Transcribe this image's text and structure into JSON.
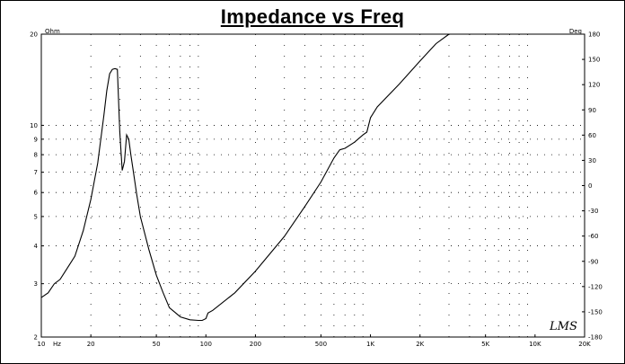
{
  "chart_data": {
    "type": "line",
    "title": "Impedance vs Freq",
    "x_scale": "log",
    "y_scale": "log",
    "xlim": [
      10,
      20000
    ],
    "ylim": [
      2,
      20
    ],
    "y2lim": [
      -180,
      180
    ],
    "y_unit": "Ohm",
    "y2_unit": "Deg",
    "x_ticks": [
      {
        "v": 10,
        "label": "10"
      },
      {
        "v": 20,
        "label": "20"
      },
      {
        "v": 50,
        "label": "50"
      },
      {
        "v": 100,
        "label": "100"
      },
      {
        "v": 200,
        "label": "200"
      },
      {
        "v": 500,
        "label": "500"
      },
      {
        "v": 1000,
        "label": "1K"
      },
      {
        "v": 2000,
        "label": "2K"
      },
      {
        "v": 5000,
        "label": "5K"
      },
      {
        "v": 10000,
        "label": "10K"
      },
      {
        "v": 20000,
        "label": "20K"
      }
    ],
    "x_unit_label": "Hz",
    "y_ticks": [
      {
        "v": 2,
        "label": "2"
      },
      {
        "v": 3,
        "label": "3"
      },
      {
        "v": 4,
        "label": "4"
      },
      {
        "v": 5,
        "label": "5"
      },
      {
        "v": 6,
        "label": "6"
      },
      {
        "v": 7,
        "label": "7"
      },
      {
        "v": 8,
        "label": "8"
      },
      {
        "v": 9,
        "label": "9"
      },
      {
        "v": 10,
        "label": "10"
      },
      {
        "v": 20,
        "label": "20"
      }
    ],
    "y2_ticks": [
      "180",
      "150",
      "120",
      "90",
      "60",
      "30",
      "0",
      "-30",
      "-60",
      "-90",
      "-120",
      "-150",
      "-180"
    ],
    "grid": "dotted",
    "series": [
      {
        "x": [
          10,
          11,
          12,
          13,
          14,
          15,
          16,
          18,
          20,
          22,
          24,
          25,
          26,
          27,
          28,
          29,
          30,
          31,
          32,
          33,
          34,
          35,
          36,
          38,
          40,
          45,
          50,
          55,
          60,
          70,
          80,
          90,
          95,
          100,
          103,
          110,
          150,
          200,
          300,
          400,
          500,
          600,
          650,
          700,
          800,
          900,
          950,
          1000,
          1100,
          1500,
          2000,
          2500,
          3000
        ],
        "y": [
          2.7,
          2.8,
          3.0,
          3.1,
          3.3,
          3.5,
          3.7,
          4.5,
          5.7,
          7.5,
          10.8,
          13.0,
          14.8,
          15.3,
          15.4,
          15.3,
          9.5,
          7.1,
          7.6,
          9.3,
          9.0,
          8.0,
          7.2,
          5.9,
          5.0,
          3.9,
          3.2,
          2.8,
          2.5,
          2.33,
          2.28,
          2.27,
          2.27,
          2.3,
          2.4,
          2.45,
          2.8,
          3.3,
          4.3,
          5.4,
          6.5,
          7.8,
          8.3,
          8.4,
          8.8,
          9.3,
          9.5,
          10.6,
          11.5,
          13.7,
          16.3,
          18.6,
          20.0
        ]
      }
    ],
    "logo": "LMS"
  }
}
